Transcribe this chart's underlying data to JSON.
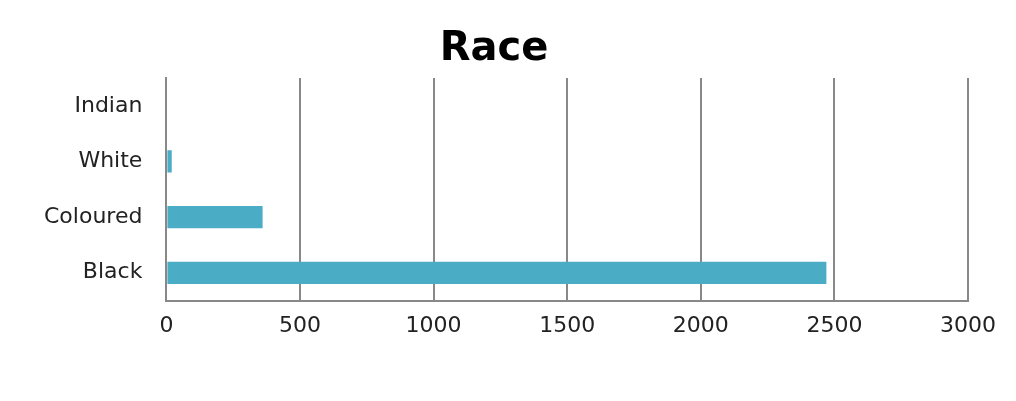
{
  "chart_data": {
    "type": "bar",
    "orientation": "horizontal",
    "title": "Race",
    "categories": [
      "Indian",
      "White",
      "Coloured",
      "Black"
    ],
    "values": [
      0,
      20,
      360,
      2470
    ],
    "color": "#4bacc6",
    "xlim": [
      0,
      3000
    ],
    "xticks": [
      0,
      500,
      1000,
      1500,
      2000,
      2500,
      3000
    ],
    "grid": "x",
    "legend": false
  }
}
